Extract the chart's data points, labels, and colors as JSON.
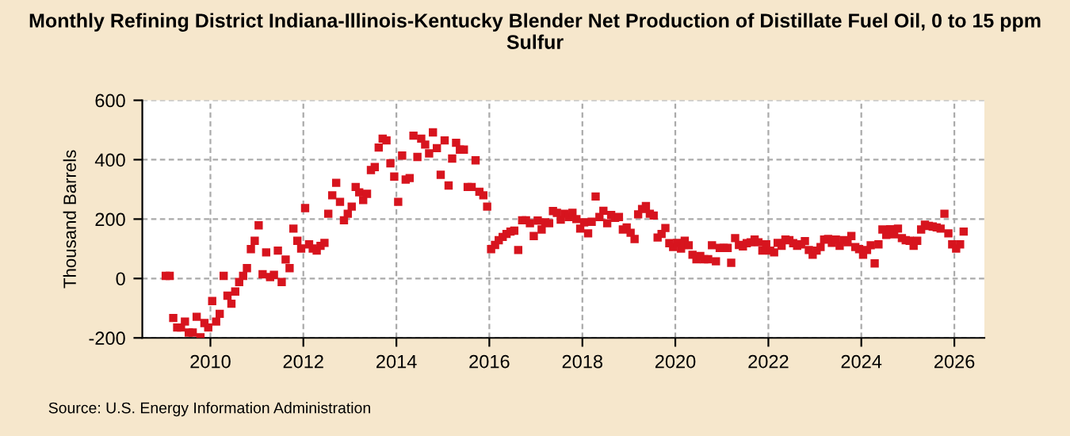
{
  "chart_data": {
    "type": "scatter",
    "title": "Monthly Refining District Indiana-Illinois-Kentucky Blender Net Production of Distillate Fuel Oil, 0 to 15 ppm Sulfur",
    "ylabel": "Thousand Barrels",
    "annotations": [
      "Source: U.S. Energy Information Administration"
    ],
    "x": [
      "2009-01",
      "2009-02",
      "2009-03",
      "2009-04",
      "2009-05",
      "2009-06",
      "2009-07",
      "2009-08",
      "2009-09",
      "2009-10",
      "2009-11",
      "2009-12",
      "2010-01",
      "2010-02",
      "2010-03",
      "2010-04",
      "2010-05",
      "2010-06",
      "2010-07",
      "2010-08",
      "2010-09",
      "2010-10",
      "2010-11",
      "2010-12",
      "2011-01",
      "2011-02",
      "2011-03",
      "2011-04",
      "2011-05",
      "2011-06",
      "2011-07",
      "2011-08",
      "2011-09",
      "2011-10",
      "2011-11",
      "2011-12",
      "2012-01",
      "2012-02",
      "2012-03",
      "2012-04",
      "2012-05",
      "2012-06",
      "2012-07",
      "2012-08",
      "2012-09",
      "2012-10",
      "2012-11",
      "2012-12",
      "2013-01",
      "2013-02",
      "2013-03",
      "2013-04",
      "2013-05",
      "2013-06",
      "2013-07",
      "2013-08",
      "2013-09",
      "2013-10",
      "2013-11",
      "2013-12",
      "2014-01",
      "2014-02",
      "2014-03",
      "2014-04",
      "2014-05",
      "2014-06",
      "2014-07",
      "2014-08",
      "2014-09",
      "2014-10",
      "2014-11",
      "2014-12",
      "2015-01",
      "2015-02",
      "2015-03",
      "2015-04",
      "2015-05",
      "2015-06",
      "2015-07",
      "2015-08",
      "2015-09",
      "2015-10",
      "2015-11",
      "2015-12",
      "2016-01",
      "2016-02",
      "2016-03",
      "2016-04",
      "2016-05",
      "2016-06",
      "2016-07",
      "2016-08",
      "2016-09",
      "2016-10",
      "2016-11",
      "2016-12",
      "2017-01",
      "2017-02",
      "2017-03",
      "2017-04",
      "2017-05",
      "2017-06",
      "2017-07",
      "2017-08",
      "2017-09",
      "2017-10",
      "2017-11",
      "2017-12",
      "2018-01",
      "2018-02",
      "2018-03",
      "2018-04",
      "2018-05",
      "2018-06",
      "2018-07",
      "2018-08",
      "2018-09",
      "2018-10",
      "2018-11",
      "2018-12",
      "2019-01",
      "2019-02",
      "2019-03",
      "2019-04",
      "2019-05",
      "2019-06",
      "2019-07",
      "2019-08",
      "2019-09",
      "2019-10",
      "2019-11",
      "2019-12",
      "2020-01",
      "2020-02",
      "2020-03",
      "2020-04",
      "2020-05",
      "2020-06",
      "2020-07",
      "2020-08",
      "2020-09",
      "2020-10",
      "2020-11",
      "2020-12",
      "2021-01",
      "2021-02",
      "2021-03",
      "2021-04",
      "2021-05",
      "2021-06",
      "2021-07",
      "2021-08",
      "2021-09",
      "2021-10",
      "2021-11",
      "2021-12",
      "2022-01",
      "2022-02",
      "2022-03",
      "2022-04",
      "2022-05",
      "2022-06",
      "2022-07",
      "2022-08",
      "2022-09",
      "2022-10",
      "2022-11",
      "2022-12",
      "2023-01",
      "2023-02",
      "2023-03",
      "2023-04",
      "2023-05",
      "2023-06",
      "2023-07",
      "2023-08",
      "2023-09",
      "2023-10",
      "2023-11",
      "2023-12",
      "2024-01",
      "2024-02",
      "2024-03",
      "2024-04",
      "2024-05",
      "2024-06",
      "2024-07",
      "2024-08",
      "2024-09",
      "2024-10",
      "2024-11",
      "2024-12",
      "2025-01",
      "2025-02",
      "2025-03",
      "2025-04",
      "2025-05",
      "2025-06",
      "2025-07",
      "2025-08",
      "2025-09",
      "2025-10",
      "2025-11",
      "2025-12",
      "2026-01",
      "2026-02",
      "2026-03"
    ],
    "series": [
      {
        "color": "#d7141e",
        "values": [
          9,
          9,
          -133,
          -165,
          -165,
          -145,
          -182,
          -182,
          -129,
          -198,
          -150,
          -165,
          -76,
          -145,
          -119,
          9,
          -58,
          -85,
          -44,
          -12,
          9,
          35,
          99,
          127,
          179,
          14,
          88,
          5,
          12,
          94,
          -12,
          64,
          35,
          168,
          127,
          101,
          237,
          115,
          101,
          94,
          110,
          120,
          218,
          280,
          322,
          258,
          196,
          218,
          242,
          308,
          290,
          264,
          285,
          365,
          375,
          441,
          471,
          465,
          388,
          343,
          258,
          414,
          333,
          338,
          481,
          409,
          471,
          451,
          421,
          492,
          439,
          349,
          465,
          313,
          404,
          457,
          434,
          434,
          308,
          308,
          398,
          292,
          280,
          242,
          99,
          113,
          129,
          140,
          150,
          158,
          161,
          96,
          196,
          196,
          186,
          143,
          195,
          165,
          189,
          186,
          227,
          221,
          198,
          218,
          207,
          221,
          200,
          168,
          189,
          152,
          191,
          276,
          207,
          228,
          186,
          214,
          204,
          207,
          165,
          172,
          154,
          133,
          216,
          234,
          244,
          218,
          212,
          138,
          150,
          170,
          119,
          106,
          120,
          101,
          127,
          112,
          80,
          65,
          76,
          65,
          65,
          112,
          58,
          103,
          103,
          103,
          53,
          136,
          113,
          108,
          119,
          122,
          131,
          122,
          94,
          115,
          94,
          88,
          120,
          110,
          131,
          129,
          119,
          110,
          115,
          126,
          96,
          80,
          94,
          106,
          131,
          133,
          120,
          131,
          110,
          129,
          122,
          143,
          106,
          99,
          80,
          96,
          112,
          51,
          115,
          165,
          147,
          166,
          149,
          168,
          136,
          129,
          127,
          110,
          127,
          165,
          181,
          177,
          175,
          172,
          168,
          218,
          152,
          115,
          101,
          115,
          158
        ]
      }
    ],
    "xlim": [
      "2008-07-15",
      "2026-08-25"
    ],
    "xticks": [
      {
        "value": "2010-01-01",
        "label": "2010"
      },
      {
        "value": "2012-01-01",
        "label": "2012"
      },
      {
        "value": "2014-01-01",
        "label": "2014"
      },
      {
        "value": "2016-01-01",
        "label": "2016"
      },
      {
        "value": "2018-01-01",
        "label": "2018"
      },
      {
        "value": "2020-01-01",
        "label": "2020"
      },
      {
        "value": "2022-01-01",
        "label": "2022"
      },
      {
        "value": "2024-01-01",
        "label": "2024"
      },
      {
        "value": "2026-01-01",
        "label": "2026"
      }
    ],
    "ylim": [
      -200,
      600
    ],
    "yticks": [
      -200,
      0,
      200,
      400,
      600
    ],
    "grid": true,
    "marker": "square"
  }
}
